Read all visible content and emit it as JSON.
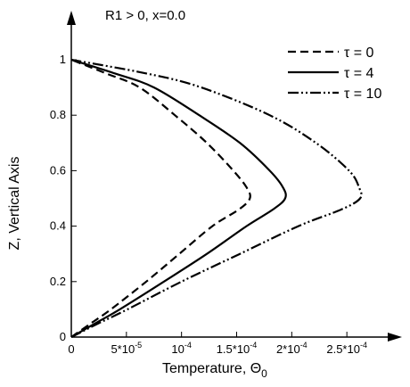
{
  "chart_data": {
    "type": "line",
    "annotation": "R1 > 0, x=0.0",
    "xlabel": "Temperature, Θ",
    "xlabel_sub": "0",
    "ylabel": "Z, Vertical Axis",
    "xlim": [
      0,
      0.0003
    ],
    "ylim": [
      0,
      1.15
    ],
    "x_ticks": [
      {
        "value": 0,
        "label": "0"
      },
      {
        "value": 5e-05,
        "base": "5*10",
        "exp": "-5"
      },
      {
        "value": 0.0001,
        "base": "10",
        "exp": "-4"
      },
      {
        "value": 0.00015,
        "base": "1.5*10",
        "exp": "-4"
      },
      {
        "value": 0.0002,
        "base": "2*10",
        "exp": "-4"
      },
      {
        "value": 0.00025,
        "base": "2.5*10",
        "exp": "-4"
      }
    ],
    "y_ticks": [
      {
        "value": 0,
        "label": "0"
      },
      {
        "value": 0.2,
        "label": "0.2"
      },
      {
        "value": 0.4,
        "label": "0.4"
      },
      {
        "value": 0.6,
        "label": "0.6"
      },
      {
        "value": 0.8,
        "label": "0.8"
      },
      {
        "value": 1,
        "label": "1"
      }
    ],
    "legend_position": "top-right",
    "series": [
      {
        "name": "τ = 0",
        "dash": "dashed",
        "points": [
          [
            0,
            0
          ],
          [
            1.8e-05,
            0.05
          ],
          [
            3.6e-05,
            0.1
          ],
          [
            6.8e-05,
            0.2
          ],
          [
            9.8e-05,
            0.3
          ],
          [
            0.000128,
            0.4
          ],
          [
            0.000152,
            0.46
          ],
          [
            0.000162,
            0.5
          ],
          [
            0.000159,
            0.54
          ],
          [
            0.000147,
            0.6
          ],
          [
            0.000123,
            0.7
          ],
          [
            9.4e-05,
            0.8
          ],
          [
            6.2e-05,
            0.9
          ],
          [
            3.2e-05,
            0.95
          ],
          [
            0,
            1
          ]
        ]
      },
      {
        "name": "τ = 4",
        "dash": "solid",
        "points": [
          [
            0,
            0
          ],
          [
            2.2e-05,
            0.05
          ],
          [
            4.4e-05,
            0.1
          ],
          [
            8.4e-05,
            0.2
          ],
          [
            0.000123,
            0.3
          ],
          [
            0.000159,
            0.4
          ],
          [
            0.000183,
            0.46
          ],
          [
            0.000194,
            0.5
          ],
          [
            0.000192,
            0.54
          ],
          [
            0.00018,
            0.6
          ],
          [
            0.000153,
            0.7
          ],
          [
            0.000116,
            0.8
          ],
          [
            7.5e-05,
            0.9
          ],
          [
            4e-05,
            0.95
          ],
          [
            0,
            1
          ]
        ]
      },
      {
        "name": "τ = 10",
        "dash": "dash-dot-dot",
        "points": [
          [
            0,
            0
          ],
          [
            2.5e-05,
            0.05
          ],
          [
            5.1e-05,
            0.1
          ],
          [
            0.0001,
            0.2
          ],
          [
            0.000153,
            0.3
          ],
          [
            0.000206,
            0.4
          ],
          [
            0.000245,
            0.46
          ],
          [
            0.000262,
            0.5
          ],
          [
            0.000261,
            0.54
          ],
          [
            0.000252,
            0.6
          ],
          [
            0.000222,
            0.7
          ],
          [
            0.00018,
            0.8
          ],
          [
            0.000118,
            0.9
          ],
          [
            6.9e-05,
            0.95
          ],
          [
            0,
            1
          ]
        ]
      }
    ]
  }
}
